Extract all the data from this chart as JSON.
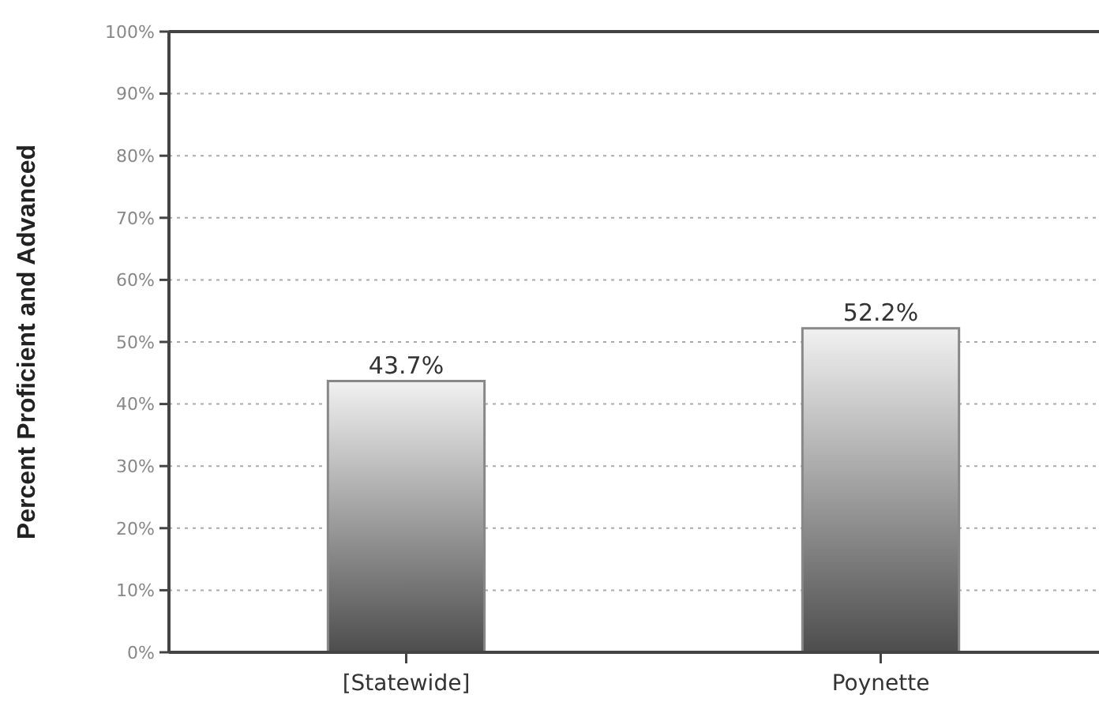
{
  "chart_data": {
    "type": "bar",
    "ylabel": "Percent Proficient and Advanced",
    "categories": [
      "[Statewide]",
      "Poynette"
    ],
    "values": [
      43.7,
      52.2
    ],
    "value_labels": [
      "43.7%",
      "52.2%"
    ],
    "color": "#888888",
    "ylim": [
      0,
      100
    ],
    "yticks": [
      {
        "value": 0,
        "label": "0%"
      },
      {
        "value": 10,
        "label": "10%"
      },
      {
        "value": 20,
        "label": "20%"
      },
      {
        "value": 30,
        "label": "30%"
      },
      {
        "value": 40,
        "label": "40%"
      },
      {
        "value": 50,
        "label": "50%"
      },
      {
        "value": 60,
        "label": "60%"
      },
      {
        "value": 70,
        "label": "70%"
      },
      {
        "value": 80,
        "label": "80%"
      },
      {
        "value": 90,
        "label": "90%"
      },
      {
        "value": 100,
        "label": "100%"
      }
    ],
    "grid": "y"
  }
}
